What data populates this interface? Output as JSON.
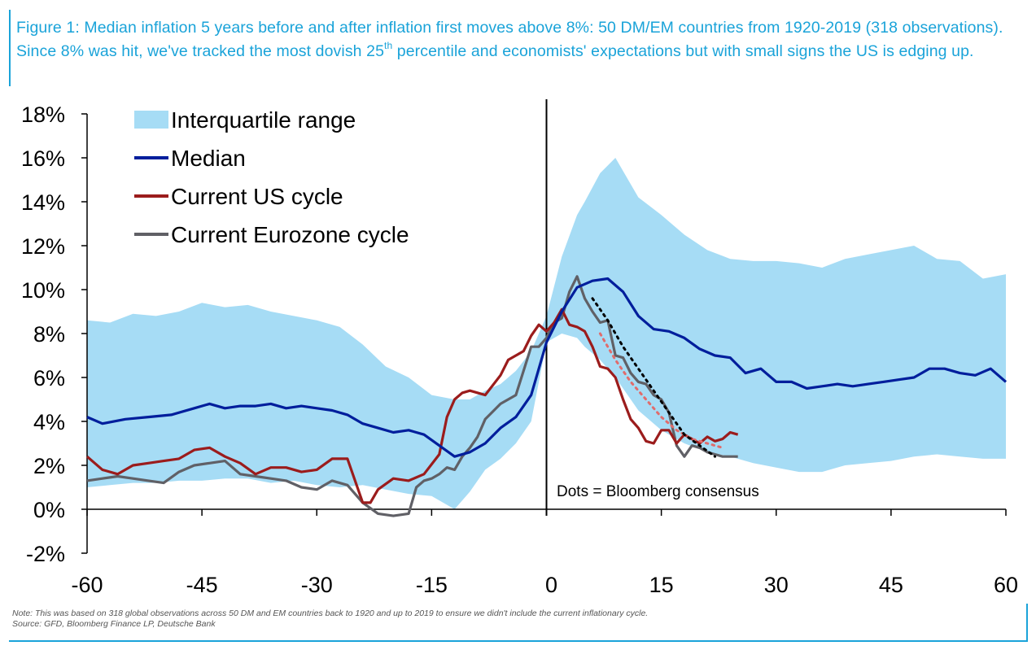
{
  "figure": {
    "title_main": "Figure 1: Median inflation 5 years before and after inflation first moves above 8%: 50 DM/EM countries from 1920-2019 (318 observations). Since 8% was hit, we've tracked the most dovish 25",
    "title_sup": "th",
    "title_tail": " percentile and economists' expectations but with small signs the US is edging up.",
    "note_line1": "Note: This was based on 318 global observations across 50 DM and EM countries back to 1920 and up to 2019 to ensure we didn't include the current inflationary cycle.",
    "note_line2": "Source: GFD, Bloomberg Finance LP, Deutsche Bank"
  },
  "colors": {
    "band": "#a6dcf5",
    "median": "#001e9c",
    "us": "#9b1c1c",
    "eurozone": "#606066",
    "us_dots": "#e06c6c",
    "ez_dots": "#000000",
    "title": "#1aa3d9"
  },
  "chart_data": {
    "type": "line",
    "title": "",
    "xlabel": "",
    "ylabel": "",
    "xlim": [
      -60,
      60
    ],
    "ylim": [
      -2,
      18
    ],
    "x_ticks": [
      -60,
      -45,
      -30,
      -15,
      0,
      15,
      30,
      45,
      60
    ],
    "x_tick_labels": [
      "-60",
      "-45",
      "-30",
      "-15",
      "0",
      "15",
      "30",
      "45",
      "60"
    ],
    "y_ticks": [
      -2,
      0,
      2,
      4,
      6,
      8,
      10,
      12,
      14,
      16,
      18
    ],
    "y_tick_labels": [
      "-2%",
      "0%",
      "2%",
      "4%",
      "6%",
      "8%",
      "10%",
      "12%",
      "14%",
      "16%",
      "18%"
    ],
    "vertical_line_x": 0,
    "legend": [
      "Interquartile range",
      "Median",
      "Current US cycle",
      "Current Eurozone cycle"
    ],
    "annotation": "Dots = Bloomberg consensus",
    "interquartile_range": {
      "name": "Interquartile range",
      "x": [
        -60,
        -57,
        -54,
        -51,
        -48,
        -45,
        -42,
        -39,
        -36,
        -33,
        -30,
        -27,
        -24,
        -21,
        -18,
        -15,
        -12,
        -10,
        -8,
        -6,
        -4,
        -2,
        0,
        2,
        4,
        5,
        7,
        9,
        10,
        12,
        15,
        18,
        21,
        24,
        27,
        30,
        33,
        36,
        39,
        42,
        45,
        48,
        51,
        54,
        57,
        60
      ],
      "upper": [
        8.6,
        8.5,
        8.9,
        8.8,
        9.0,
        9.4,
        9.2,
        9.3,
        9.0,
        8.8,
        8.6,
        8.3,
        7.5,
        6.5,
        6.0,
        5.2,
        5.0,
        5.0,
        5.4,
        5.7,
        6.3,
        7.2,
        8.8,
        11.5,
        13.4,
        14.0,
        15.3,
        16.0,
        15.4,
        14.2,
        13.4,
        12.5,
        11.8,
        11.4,
        11.3,
        11.3,
        11.2,
        11.0,
        11.4,
        11.6,
        11.8,
        12.0,
        11.4,
        11.3,
        10.5,
        10.7
      ],
      "lower": [
        1.0,
        1.1,
        1.2,
        1.2,
        1.3,
        1.3,
        1.4,
        1.4,
        1.2,
        1.3,
        1.1,
        1.0,
        1.1,
        0.9,
        0.7,
        0.6,
        0.0,
        0.8,
        1.8,
        2.3,
        3.0,
        4.0,
        7.6,
        8.0,
        7.8,
        7.4,
        6.8,
        6.0,
        5.5,
        4.5,
        3.6,
        3.0,
        2.6,
        2.4,
        2.1,
        1.9,
        1.7,
        1.7,
        2.0,
        2.1,
        2.2,
        2.4,
        2.5,
        2.4,
        2.3,
        2.3
      ]
    },
    "series": [
      {
        "name": "Median",
        "x": [
          -60,
          -58,
          -55,
          -52,
          -49,
          -46,
          -44,
          -42,
          -40,
          -38,
          -36,
          -34,
          -32,
          -30,
          -28,
          -26,
          -24,
          -22,
          -20,
          -18,
          -16,
          -14,
          -12,
          -10,
          -8,
          -6,
          -4,
          -2,
          0,
          2,
          4,
          6,
          8,
          10,
          12,
          14,
          16,
          18,
          20,
          22,
          24,
          26,
          28,
          30,
          32,
          34,
          36,
          38,
          40,
          42,
          44,
          46,
          48,
          50,
          52,
          54,
          56,
          58,
          60
        ],
        "values": [
          4.2,
          3.9,
          4.1,
          4.2,
          4.3,
          4.6,
          4.8,
          4.6,
          4.7,
          4.7,
          4.8,
          4.6,
          4.7,
          4.6,
          4.5,
          4.3,
          3.9,
          3.7,
          3.5,
          3.6,
          3.4,
          2.9,
          2.4,
          2.6,
          3.0,
          3.7,
          4.2,
          5.2,
          7.6,
          9.0,
          10.1,
          10.4,
          10.5,
          9.9,
          8.8,
          8.2,
          8.1,
          7.8,
          7.3,
          7.0,
          6.9,
          6.2,
          6.4,
          5.8,
          5.8,
          5.5,
          5.6,
          5.7,
          5.6,
          5.7,
          5.8,
          5.9,
          6.0,
          6.4,
          6.4,
          6.2,
          6.1,
          6.4,
          5.8
        ]
      },
      {
        "name": "Current US cycle",
        "x": [
          -60,
          -58,
          -56,
          -54,
          -52,
          -50,
          -48,
          -46,
          -44,
          -42,
          -40,
          -38,
          -36,
          -34,
          -32,
          -30,
          -28,
          -26,
          -24,
          -23,
          -22,
          -20,
          -18,
          -16,
          -14,
          -13,
          -12,
          -11,
          -10,
          -8,
          -6,
          -5,
          -4,
          -3,
          -2,
          -1,
          0,
          1,
          2,
          3,
          4,
          5,
          6,
          7,
          8,
          9,
          10,
          11,
          12,
          13,
          14,
          15,
          16,
          17,
          18,
          19,
          20,
          21,
          22,
          23,
          24,
          25
        ],
        "values": [
          2.4,
          1.8,
          1.6,
          2.0,
          2.1,
          2.2,
          2.3,
          2.7,
          2.8,
          2.4,
          2.1,
          1.6,
          1.9,
          1.9,
          1.7,
          1.8,
          2.3,
          2.3,
          0.3,
          0.3,
          0.9,
          1.4,
          1.3,
          1.6,
          2.5,
          4.2,
          5.0,
          5.3,
          5.4,
          5.2,
          6.1,
          6.8,
          7.0,
          7.2,
          7.9,
          8.4,
          8.1,
          8.5,
          9.1,
          8.4,
          8.3,
          8.1,
          7.4,
          6.5,
          6.4,
          6.0,
          5.0,
          4.1,
          3.7,
          3.1,
          3.0,
          3.6,
          3.6,
          3.0,
          3.4,
          3.2,
          3.0,
          3.3,
          3.1,
          3.2,
          3.5,
          3.4
        ]
      },
      {
        "name": "Current Eurozone cycle",
        "x": [
          -60,
          -58,
          -56,
          -54,
          -52,
          -50,
          -48,
          -46,
          -44,
          -42,
          -40,
          -38,
          -36,
          -34,
          -32,
          -30,
          -28,
          -26,
          -24,
          -22,
          -20,
          -18,
          -17,
          -16,
          -15,
          -14,
          -13,
          -12,
          -11,
          -10,
          -9,
          -8,
          -6,
          -4,
          -2,
          -1,
          0,
          1,
          2,
          3,
          4,
          5,
          6,
          7,
          8,
          9,
          10,
          11,
          12,
          13,
          14,
          15,
          16,
          17,
          18,
          19,
          20,
          21,
          22,
          23,
          24,
          25
        ],
        "values": [
          1.3,
          1.4,
          1.5,
          1.4,
          1.3,
          1.2,
          1.7,
          2.0,
          2.1,
          2.2,
          1.6,
          1.5,
          1.4,
          1.3,
          1.0,
          0.9,
          1.3,
          1.1,
          0.3,
          -0.2,
          -0.3,
          -0.2,
          1.0,
          1.3,
          1.4,
          1.6,
          1.9,
          1.8,
          2.4,
          2.8,
          3.3,
          4.1,
          4.8,
          5.2,
          7.4,
          7.4,
          7.8,
          8.5,
          8.7,
          9.9,
          10.6,
          9.6,
          9.0,
          8.5,
          8.6,
          7.0,
          6.9,
          6.2,
          5.8,
          5.7,
          5.2,
          5.0,
          4.4,
          2.9,
          2.4,
          2.9,
          2.8,
          2.6,
          2.5,
          2.4,
          2.4,
          2.4
        ]
      }
    ],
    "dotted_series": [
      {
        "name": "US consensus",
        "x": [
          7,
          9,
          11,
          13,
          15,
          17,
          19,
          21,
          23
        ],
        "values": [
          8.0,
          6.8,
          5.8,
          5.0,
          4.2,
          3.6,
          3.2,
          3.0,
          2.8
        ]
      },
      {
        "name": "Eurozone consensus",
        "x": [
          6,
          8,
          10,
          12,
          14,
          16,
          18,
          20,
          22
        ],
        "values": [
          9.6,
          8.6,
          7.4,
          6.4,
          5.4,
          4.4,
          3.4,
          2.9,
          2.4
        ]
      }
    ]
  }
}
